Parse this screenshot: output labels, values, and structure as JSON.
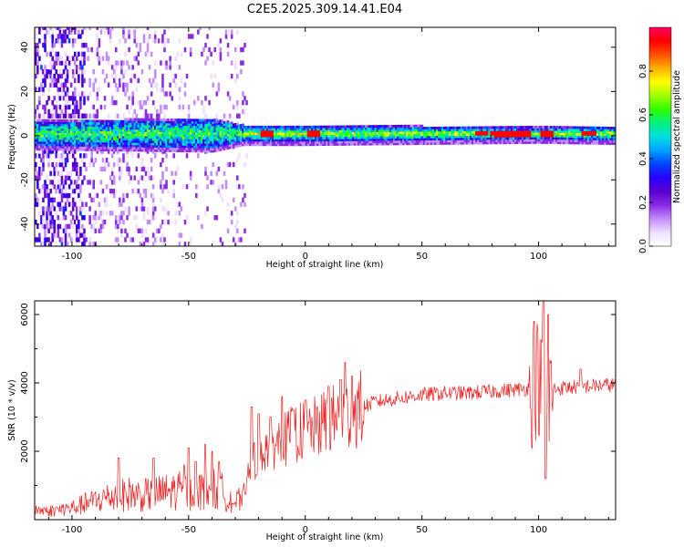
{
  "title": "C2E5.2025.309.14.41.E04",
  "chart_data": [
    {
      "type": "heatmap",
      "xlabel": "Height of straight line (km)",
      "ylabel": "Frequency (Hz)",
      "xlim": [
        -116,
        133
      ],
      "ylim": [
        -50,
        49
      ],
      "xticks": [
        -100,
        -50,
        0,
        50,
        100
      ],
      "yticks": [
        -40,
        -20,
        0,
        20,
        40
      ],
      "colorbar": {
        "label": "Normalized spectral amplitude",
        "range": [
          0.0,
          1.0
        ],
        "ticks": [
          0.0,
          0.2,
          0.4,
          0.6,
          0.8
        ],
        "tick_labels": [
          "0.0",
          "0.2",
          "0.4",
          "0.6",
          "0.8"
        ],
        "colors": [
          "#ffffff",
          "#ece0ff",
          "#c38cff",
          "#8a2be2",
          "#5a00d0",
          "#2a00ff",
          "#0044ff",
          "#00a0ff",
          "#00e0e0",
          "#00f080",
          "#30ff00",
          "#a0ff00",
          "#ffff00",
          "#ffb000",
          "#ff5000",
          "#ff0000",
          "#ff0060"
        ]
      },
      "description_points": {
        "center_freq_hz": 0.5,
        "band_halfwidth_hz": [
          [
            -116,
            5
          ],
          [
            -40,
            6
          ],
          [
            -27,
            3
          ],
          [
            0,
            3
          ],
          [
            50,
            2.5
          ],
          [
            100,
            2
          ],
          [
            133,
            2.5
          ]
        ],
        "hot_spots_km": [
          -17,
          3,
          75,
          82,
          88,
          93,
          103,
          121
        ]
      }
    },
    {
      "type": "line",
      "xlabel": "Height of straight line (km)",
      "ylabel": "SNR (10 * v/v)",
      "xlim": [
        -116,
        133
      ],
      "ylim": [
        0,
        6400
      ],
      "xticks": [
        -100,
        -50,
        0,
        50,
        100
      ],
      "yticks": [
        2000,
        4000,
        6000
      ],
      "color": "#ee2222",
      "series": [
        {
          "name": "SNR",
          "x": [
            -116,
            -110,
            -105,
            -100,
            -95,
            -90,
            -85,
            -80,
            -75,
            -70,
            -65,
            -60,
            -55,
            -50,
            -45,
            -40,
            -35,
            -30,
            -27,
            -25,
            -22,
            -20,
            -15,
            -10,
            -5,
            0,
            5,
            10,
            15,
            20,
            25,
            30,
            40,
            50,
            60,
            70,
            80,
            90,
            97,
            100,
            102,
            103,
            105,
            110,
            120,
            133
          ],
          "values": [
            300,
            250,
            300,
            350,
            450,
            550,
            650,
            700,
            750,
            700,
            750,
            800,
            850,
            800,
            850,
            900,
            800,
            500,
            600,
            1200,
            1700,
            2000,
            2200,
            2300,
            2500,
            2600,
            2700,
            2900,
            3000,
            3100,
            3300,
            3450,
            3550,
            3650,
            3700,
            3700,
            3750,
            3800,
            3850,
            4200,
            3500,
            2500,
            3800,
            3850,
            3900,
            3950
          ],
          "peaks": [
            [
              -80,
              1800
            ],
            [
              -65,
              1800
            ],
            [
              -52,
              1600
            ],
            [
              -50,
              2100
            ],
            [
              -47,
              1700
            ],
            [
              -43,
              2200
            ],
            [
              -40,
              2000
            ],
            [
              -37,
              1700
            ],
            [
              -23,
              3300
            ],
            [
              -20,
              3100
            ],
            [
              -15,
              3000
            ],
            [
              -10,
              3600
            ],
            [
              -5,
              3200
            ],
            [
              0,
              3500
            ],
            [
              5,
              3300
            ],
            [
              10,
              3900
            ],
            [
              15,
              4100
            ],
            [
              17,
              4600
            ],
            [
              20,
              4200
            ],
            [
              102,
              6400
            ],
            [
              98,
              5800
            ],
            [
              104,
              6000
            ],
            [
              103,
              1200
            ],
            [
              118,
              4400
            ]
          ]
        }
      ]
    }
  ]
}
